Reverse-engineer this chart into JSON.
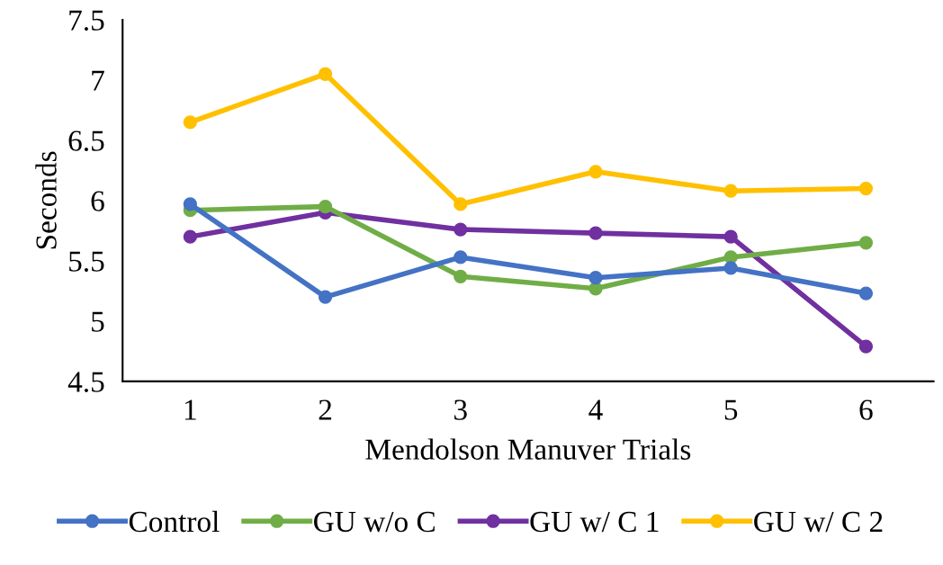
{
  "chart_data": {
    "type": "line",
    "xlabel": "Mendolson Manuver Trials",
    "ylabel": "Seconds",
    "categories": [
      "1",
      "2",
      "3",
      "4",
      "5",
      "6"
    ],
    "series": [
      {
        "name": "Control",
        "color": "#4472c4",
        "values": [
          5.97,
          5.2,
          5.53,
          5.36,
          5.44,
          5.23
        ]
      },
      {
        "name": "GU w/o C",
        "color": "#70ad47",
        "values": [
          5.92,
          5.95,
          5.37,
          5.27,
          5.53,
          5.65
        ]
      },
      {
        "name": "GU w/ C 1",
        "color": "#7030a0",
        "values": [
          5.7,
          5.9,
          5.76,
          5.73,
          5.7,
          4.79
        ]
      },
      {
        "name": "GU w/ C 2",
        "color": "#ffc000",
        "values": [
          6.65,
          7.05,
          5.97,
          6.24,
          6.08,
          6.1
        ]
      }
    ],
    "ylim": [
      4.5,
      7.5
    ],
    "yticks": [
      4.5,
      5,
      5.5,
      6,
      6.5,
      7,
      7.5
    ],
    "grid": false,
    "legend": "bottom",
    "marker": "circle",
    "line_style": "solid"
  }
}
